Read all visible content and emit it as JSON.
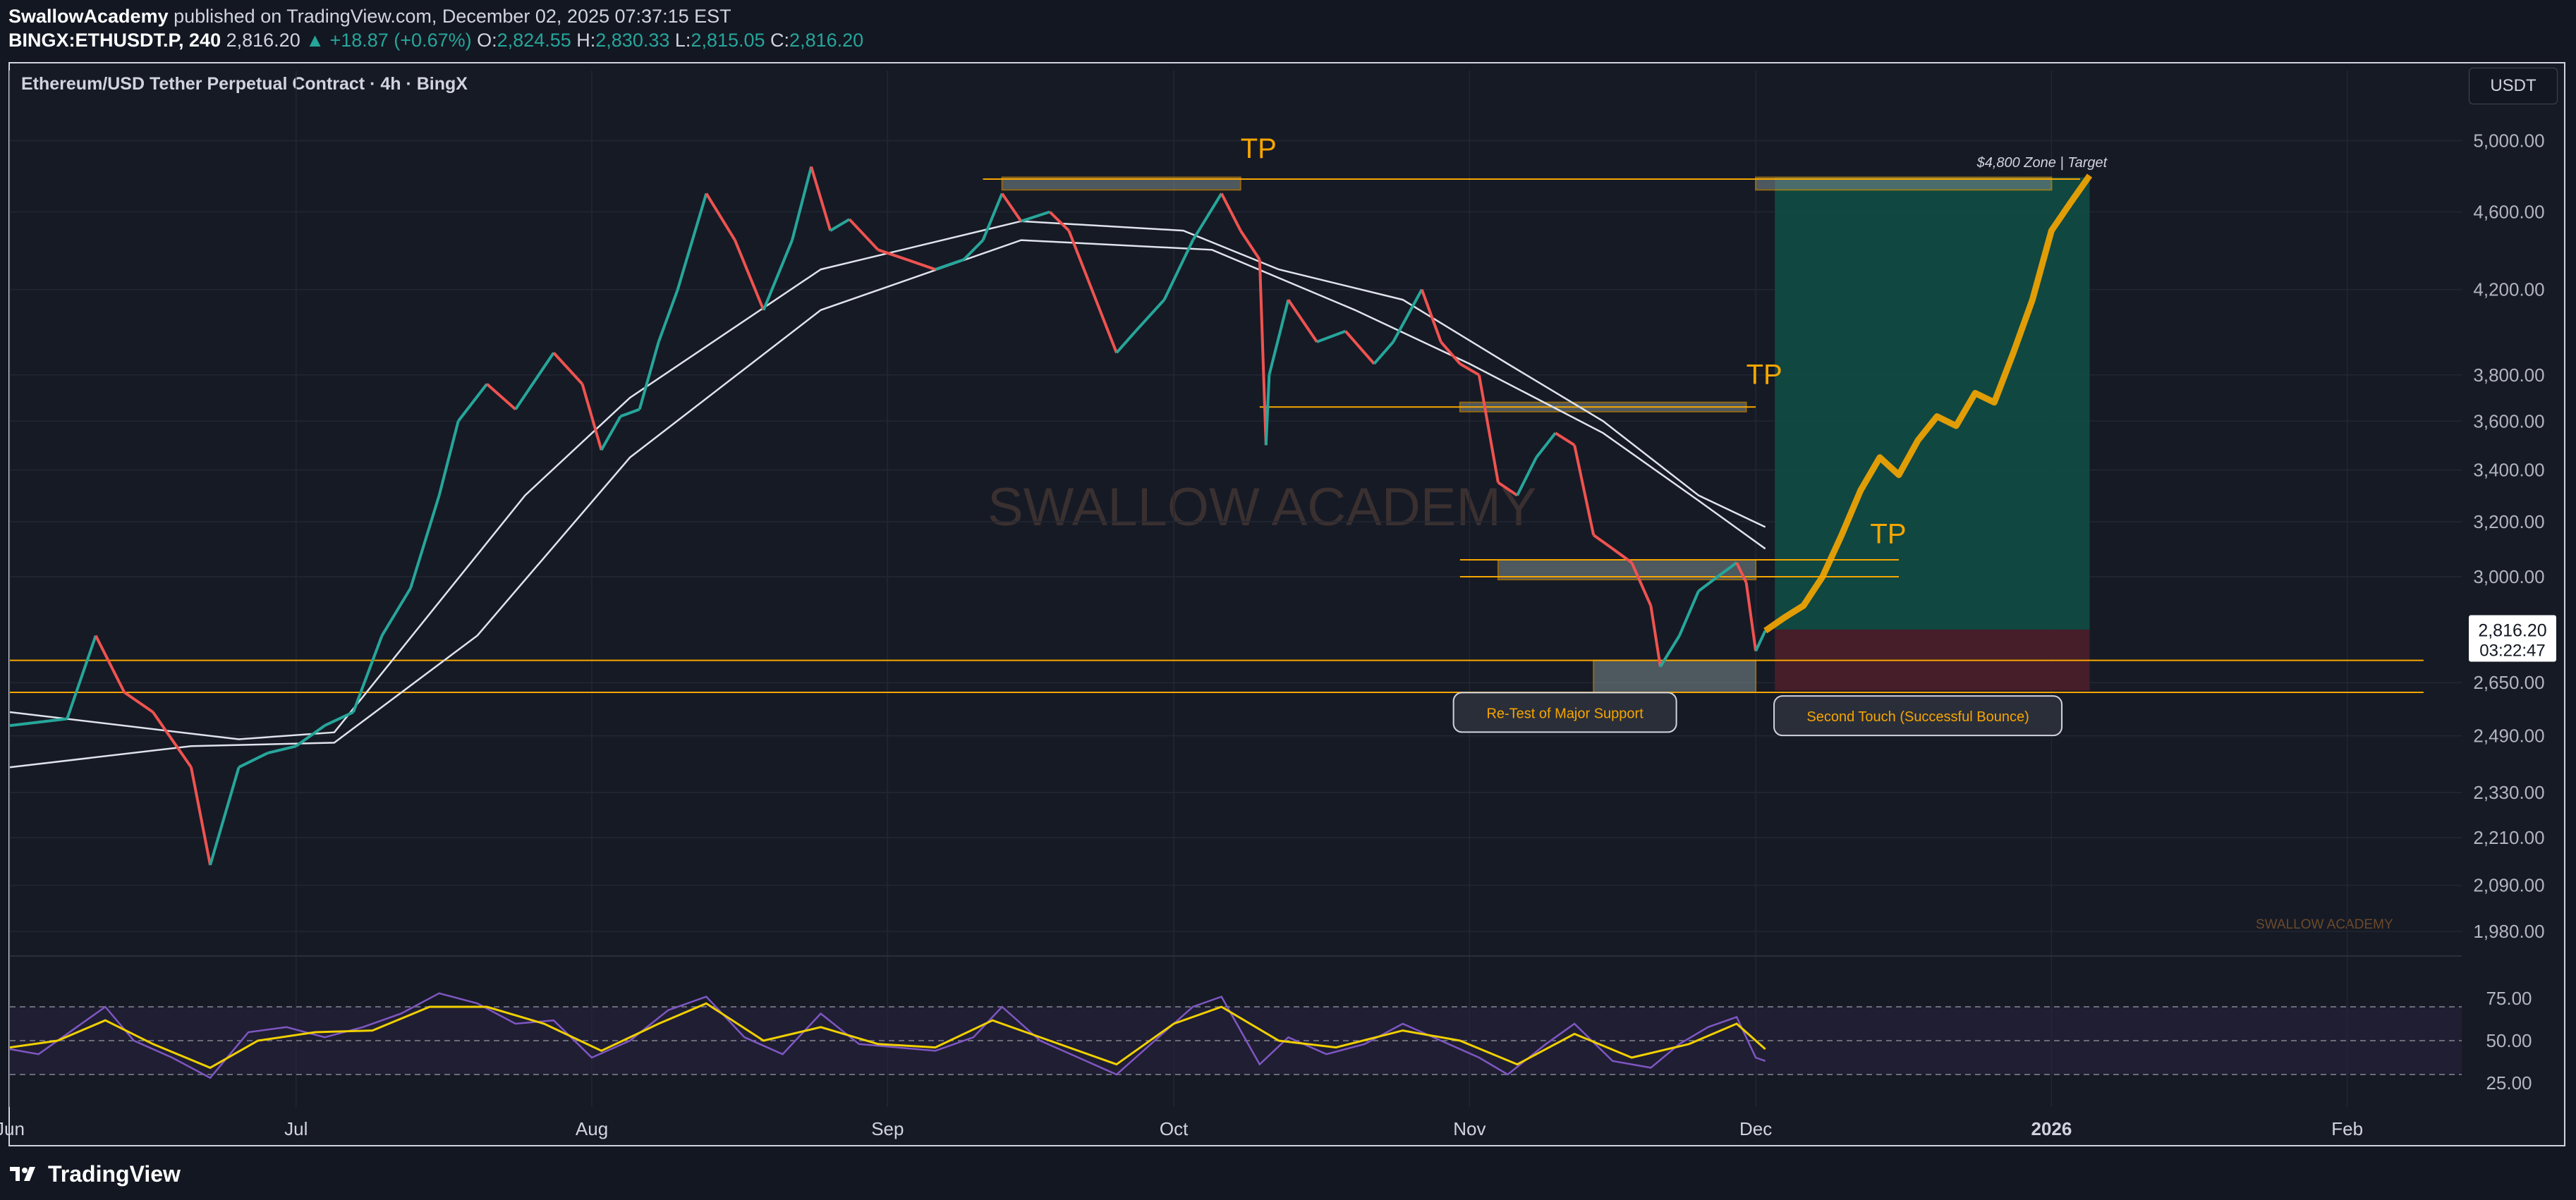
{
  "header": {
    "author": "SwallowAcademy",
    "published": "published on TradingView.com, December 02, 2025 07:37:15 EST",
    "symbol": "BINGX:ETHUSDT.P, 240",
    "last": "2,816.20",
    "change": "▲ +18.87 (+0.67%)",
    "o_label": "O:",
    "o_value": "2,824.55",
    "h_label": "H:",
    "h_value": "2,830.33",
    "l_label": "L:",
    "l_value": "2,815.05",
    "c_label": "C:",
    "c_value": "2,816.20"
  },
  "legend_title": "Ethereum/USD Tether Perpetual Contract · 4h · BingX",
  "currency": "USDT",
  "watermark": "SWALLOW ACADEMY",
  "small_watermark": "SWALLOW ACADEMY",
  "footer_brand": "TradingView",
  "colors": {
    "background": "#161a25",
    "up_candle": "#26a69a",
    "down_candle": "#ef5350",
    "orange": "#f7a600",
    "target_zone": "#0f4d45",
    "stop_zone": "#4a1f2a",
    "rsi": "#7e57c2",
    "rsi_ma": "#f0d000"
  },
  "chart_data": {
    "type": "line",
    "title": "Ethereum/USD Tether Perpetual Contract · 4h · BingX",
    "y_scale": "log",
    "ylim": [
      1900,
      5150
    ],
    "y_ticks": [
      5000,
      4600,
      4200,
      3800,
      3600,
      3400,
      3200,
      3000,
      2650,
      2490,
      2330,
      2210,
      2090,
      1980
    ],
    "y_tick_labels": [
      "5,000.00",
      "4,600.00",
      "4,200.00",
      "3,800.00",
      "3,600.00",
      "3,400.00",
      "3,200.00",
      "3,000.00",
      "2,650.00",
      "2,490.00",
      "2,330.00",
      "2,210.00",
      "2,090.00",
      "1,980.00"
    ],
    "x_tick_labels": [
      {
        "date": "2025-06-01",
        "label": "Jun"
      },
      {
        "date": "2025-07-01",
        "label": "Jul"
      },
      {
        "date": "2025-08-01",
        "label": "Aug"
      },
      {
        "date": "2025-09-01",
        "label": "Sep"
      },
      {
        "date": "2025-10-01",
        "label": "Oct"
      },
      {
        "date": "2025-11-01",
        "label": "Nov"
      },
      {
        "date": "2025-12-01",
        "label": "Dec"
      },
      {
        "date": "2026-01-01",
        "label": "2026"
      },
      {
        "date": "2026-02-01",
        "label": "Feb"
      }
    ],
    "x_range": [
      "2025-06-01",
      "2026-02-13"
    ],
    "series": [
      {
        "name": "",
        "kind": "price",
        "points": [
          [
            "2025-06-01",
            2520
          ],
          [
            "2025-06-07",
            2540
          ],
          [
            "2025-06-10",
            2800
          ],
          [
            "2025-06-13",
            2620
          ],
          [
            "2025-06-16",
            2560
          ],
          [
            "2025-06-20",
            2400
          ],
          [
            "2025-06-22",
            2140
          ],
          [
            "2025-06-25",
            2400
          ],
          [
            "2025-06-28",
            2440
          ],
          [
            "2025-07-01",
            2460
          ],
          [
            "2025-07-04",
            2520
          ],
          [
            "2025-07-07",
            2560
          ],
          [
            "2025-07-10",
            2800
          ],
          [
            "2025-07-13",
            2960
          ],
          [
            "2025-07-16",
            3300
          ],
          [
            "2025-07-18",
            3600
          ],
          [
            "2025-07-21",
            3760
          ],
          [
            "2025-07-24",
            3650
          ],
          [
            "2025-07-28",
            3900
          ],
          [
            "2025-07-31",
            3760
          ],
          [
            "2025-08-02",
            3480
          ],
          [
            "2025-08-04",
            3620
          ],
          [
            "2025-08-06",
            3650
          ],
          [
            "2025-08-08",
            3950
          ],
          [
            "2025-08-10",
            4200
          ],
          [
            "2025-08-13",
            4700
          ],
          [
            "2025-08-16",
            4450
          ],
          [
            "2025-08-19",
            4100
          ],
          [
            "2025-08-22",
            4450
          ],
          [
            "2025-08-24",
            4850
          ],
          [
            "2025-08-26",
            4500
          ],
          [
            "2025-08-28",
            4560
          ],
          [
            "2025-08-31",
            4400
          ],
          [
            "2025-09-03",
            4350
          ],
          [
            "2025-09-06",
            4300
          ],
          [
            "2025-09-09",
            4350
          ],
          [
            "2025-09-11",
            4450
          ],
          [
            "2025-09-13",
            4700
          ],
          [
            "2025-09-15",
            4550
          ],
          [
            "2025-09-18",
            4600
          ],
          [
            "2025-09-20",
            4500
          ],
          [
            "2025-09-22",
            4250
          ],
          [
            "2025-09-25",
            3900
          ],
          [
            "2025-09-27",
            4000
          ],
          [
            "2025-09-30",
            4150
          ],
          [
            "2025-10-03",
            4450
          ],
          [
            "2025-10-06",
            4700
          ],
          [
            "2025-10-08",
            4500
          ],
          [
            "2025-10-10",
            4350
          ],
          [
            "2025-10-10 16:00",
            3500
          ],
          [
            "2025-10-11",
            3800
          ],
          [
            "2025-10-13",
            4150
          ],
          [
            "2025-10-16",
            3950
          ],
          [
            "2025-10-19",
            4000
          ],
          [
            "2025-10-22",
            3850
          ],
          [
            "2025-10-24",
            3950
          ],
          [
            "2025-10-27",
            4200
          ],
          [
            "2025-10-29",
            3950
          ],
          [
            "2025-10-31",
            3850
          ],
          [
            "2025-11-02",
            3800
          ],
          [
            "2025-11-04",
            3350
          ],
          [
            "2025-11-06",
            3300
          ],
          [
            "2025-11-08",
            3450
          ],
          [
            "2025-11-10",
            3550
          ],
          [
            "2025-11-12",
            3500
          ],
          [
            "2025-11-14",
            3150
          ],
          [
            "2025-11-16",
            3100
          ],
          [
            "2025-11-18",
            3050
          ],
          [
            "2025-11-20",
            2900
          ],
          [
            "2025-11-21",
            2700
          ],
          [
            "2025-11-23",
            2800
          ],
          [
            "2025-11-25",
            2950
          ],
          [
            "2025-11-27",
            3000
          ],
          [
            "2025-11-29",
            3050
          ],
          [
            "2025-11-30",
            2980
          ],
          [
            "2025-12-01",
            2750
          ],
          [
            "2025-12-02",
            2816.2
          ]
        ]
      },
      {
        "name": "",
        "kind": "projection",
        "points": [
          [
            "2025-12-02",
            2816
          ],
          [
            "2025-12-04",
            2860
          ],
          [
            "2025-12-06",
            2900
          ],
          [
            "2025-12-08",
            3000
          ],
          [
            "2025-12-10",
            3150
          ],
          [
            "2025-12-12",
            3320
          ],
          [
            "2025-12-14",
            3450
          ],
          [
            "2025-12-16",
            3380
          ],
          [
            "2025-12-18",
            3520
          ],
          [
            "2025-12-20",
            3620
          ],
          [
            "2025-12-22",
            3580
          ],
          [
            "2025-12-24",
            3720
          ],
          [
            "2025-12-26",
            3680
          ],
          [
            "2025-12-28",
            3900
          ],
          [
            "2025-12-30",
            4150
          ],
          [
            "2026-01-01",
            4500
          ],
          [
            "2026-01-03",
            4650
          ],
          [
            "2026-01-05",
            4800
          ]
        ]
      }
    ],
    "rsi": {
      "ylim": [
        15,
        90
      ],
      "ticks": [
        75,
        50,
        25
      ],
      "tick_labels": [
        "75.00",
        "50.00",
        "25.00"
      ],
      "bands": [
        70,
        30
      ],
      "midline": 50,
      "points": [
        [
          "2025-06-01",
          45
        ],
        [
          "2025-06-04",
          42
        ],
        [
          "2025-06-08",
          58
        ],
        [
          "2025-06-11",
          70
        ],
        [
          "2025-06-14",
          50
        ],
        [
          "2025-06-18",
          40
        ],
        [
          "2025-06-22",
          28
        ],
        [
          "2025-06-26",
          55
        ],
        [
          "2025-06-30",
          58
        ],
        [
          "2025-07-04",
          52
        ],
        [
          "2025-07-08",
          58
        ],
        [
          "2025-07-12",
          66
        ],
        [
          "2025-07-16",
          78
        ],
        [
          "2025-07-20",
          72
        ],
        [
          "2025-07-24",
          60
        ],
        [
          "2025-07-28",
          62
        ],
        [
          "2025-08-01",
          40
        ],
        [
          "2025-08-05",
          50
        ],
        [
          "2025-08-09",
          68
        ],
        [
          "2025-08-13",
          76
        ],
        [
          "2025-08-17",
          52
        ],
        [
          "2025-08-21",
          42
        ],
        [
          "2025-08-25",
          66
        ],
        [
          "2025-08-29",
          48
        ],
        [
          "2025-09-02",
          46
        ],
        [
          "2025-09-06",
          44
        ],
        [
          "2025-09-10",
          52
        ],
        [
          "2025-09-13",
          70
        ],
        [
          "2025-09-17",
          50
        ],
        [
          "2025-09-21",
          40
        ],
        [
          "2025-09-25",
          30
        ],
        [
          "2025-09-29",
          50
        ],
        [
          "2025-10-03",
          70
        ],
        [
          "2025-10-06",
          76
        ],
        [
          "2025-10-10",
          36
        ],
        [
          "2025-10-13",
          52
        ],
        [
          "2025-10-17",
          42
        ],
        [
          "2025-10-21",
          48
        ],
        [
          "2025-10-25",
          60
        ],
        [
          "2025-10-29",
          50
        ],
        [
          "2025-11-02",
          40
        ],
        [
          "2025-11-05",
          30
        ],
        [
          "2025-11-09",
          48
        ],
        [
          "2025-11-12",
          60
        ],
        [
          "2025-11-16",
          38
        ],
        [
          "2025-11-20",
          34
        ],
        [
          "2025-11-23",
          48
        ],
        [
          "2025-11-26",
          58
        ],
        [
          "2025-11-29",
          64
        ],
        [
          "2025-12-01",
          40
        ],
        [
          "2025-12-02",
          38
        ]
      ],
      "ma_points": [
        [
          "2025-06-01",
          46
        ],
        [
          "2025-06-06",
          50
        ],
        [
          "2025-06-11",
          62
        ],
        [
          "2025-06-16",
          48
        ],
        [
          "2025-06-22",
          34
        ],
        [
          "2025-06-27",
          50
        ],
        [
          "2025-07-03",
          55
        ],
        [
          "2025-07-09",
          56
        ],
        [
          "2025-07-15",
          70
        ],
        [
          "2025-07-21",
          70
        ],
        [
          "2025-07-27",
          60
        ],
        [
          "2025-08-02",
          44
        ],
        [
          "2025-08-08",
          60
        ],
        [
          "2025-08-13",
          72
        ],
        [
          "2025-08-19",
          50
        ],
        [
          "2025-08-25",
          58
        ],
        [
          "2025-08-31",
          48
        ],
        [
          "2025-09-06",
          46
        ],
        [
          "2025-09-12",
          62
        ],
        [
          "2025-09-18",
          50
        ],
        [
          "2025-09-25",
          36
        ],
        [
          "2025-10-01",
          60
        ],
        [
          "2025-10-06",
          70
        ],
        [
          "2025-10-12",
          50
        ],
        [
          "2025-10-18",
          46
        ],
        [
          "2025-10-25",
          56
        ],
        [
          "2025-10-31",
          50
        ],
        [
          "2025-11-06",
          36
        ],
        [
          "2025-11-12",
          54
        ],
        [
          "2025-11-18",
          40
        ],
        [
          "2025-11-24",
          48
        ],
        [
          "2025-11-29",
          60
        ],
        [
          "2025-12-02",
          45
        ]
      ]
    },
    "moving_averages": [
      {
        "name": "",
        "points": [
          [
            "2025-06-01",
            2560
          ],
          [
            "2025-06-25",
            2480
          ],
          [
            "2025-07-05",
            2500
          ],
          [
            "2025-07-25",
            3300
          ],
          [
            "2025-08-05",
            3700
          ],
          [
            "2025-08-25",
            4300
          ],
          [
            "2025-09-15",
            4550
          ],
          [
            "2025-10-02",
            4500
          ],
          [
            "2025-10-12",
            4300
          ],
          [
            "2025-10-25",
            4150
          ],
          [
            "2025-11-05",
            3850
          ],
          [
            "2025-11-15",
            3600
          ],
          [
            "2025-11-25",
            3300
          ],
          [
            "2025-12-02",
            3180
          ]
        ]
      },
      {
        "name": "",
        "points": [
          [
            "2025-06-01",
            2400
          ],
          [
            "2025-06-20",
            2460
          ],
          [
            "2025-07-05",
            2470
          ],
          [
            "2025-07-20",
            2800
          ],
          [
            "2025-08-05",
            3450
          ],
          [
            "2025-08-25",
            4100
          ],
          [
            "2025-09-15",
            4450
          ],
          [
            "2025-10-05",
            4400
          ],
          [
            "2025-10-20",
            4100
          ],
          [
            "2025-11-01",
            3850
          ],
          [
            "2025-11-15",
            3550
          ],
          [
            "2025-11-25",
            3280
          ],
          [
            "2025-12-02",
            3100
          ]
        ]
      }
    ],
    "annotations": {
      "tp_labels": [
        {
          "text": "TP",
          "date": "2025-10-08",
          "price": 4900
        },
        {
          "text": "TP",
          "date": "2025-11-30",
          "price": 3760
        },
        {
          "text": "TP",
          "date": "2025-12-13",
          "price": 3120
        }
      ],
      "target_label": "$4,800 Zone | Target",
      "target_price": 4800,
      "callouts": [
        {
          "text": "Re-Test of Major Support",
          "date": "2025-11-11",
          "price": 2555
        },
        {
          "text": "Second Touch (Successful Bounce)",
          "date": "2025-12-18",
          "price": 2545
        }
      ],
      "levels": [
        {
          "price": 4780,
          "from": "2025-09-11",
          "to": "2026-01-04"
        },
        {
          "price": 3660,
          "from": "2025-10-10",
          "to": "2025-12-01"
        },
        {
          "price": 3060,
          "from": "2025-10-31",
          "to": "2025-12-16"
        },
        {
          "price": 3000,
          "from": "2025-10-31",
          "to": "2025-12-16"
        },
        {
          "price": 2720,
          "from": "2025-06-01",
          "to": "2026-02-09"
        },
        {
          "price": 2620,
          "from": "2025-06-01",
          "to": "2026-02-09"
        }
      ],
      "zones": [
        {
          "from": "2025-09-13",
          "to": "2025-10-08",
          "high": 4790,
          "low": 4720
        },
        {
          "from": "2025-12-01",
          "to": "2026-01-01",
          "high": 4790,
          "low": 4720
        },
        {
          "from": "2025-10-31",
          "to": "2025-11-30",
          "high": 3680,
          "low": 3640
        },
        {
          "from": "2025-11-04",
          "to": "2025-12-01",
          "high": 3060,
          "low": 2990
        },
        {
          "from": "2025-11-14",
          "to": "2025-12-01",
          "high": 2720,
          "low": 2620
        }
      ],
      "position": {
        "from": "2025-12-03",
        "to": "2026-01-05",
        "entry": 2820,
        "target": 4790,
        "stop": 2625
      }
    },
    "last_price_label": "2,816.20",
    "countdown_label": "03:22:47"
  }
}
